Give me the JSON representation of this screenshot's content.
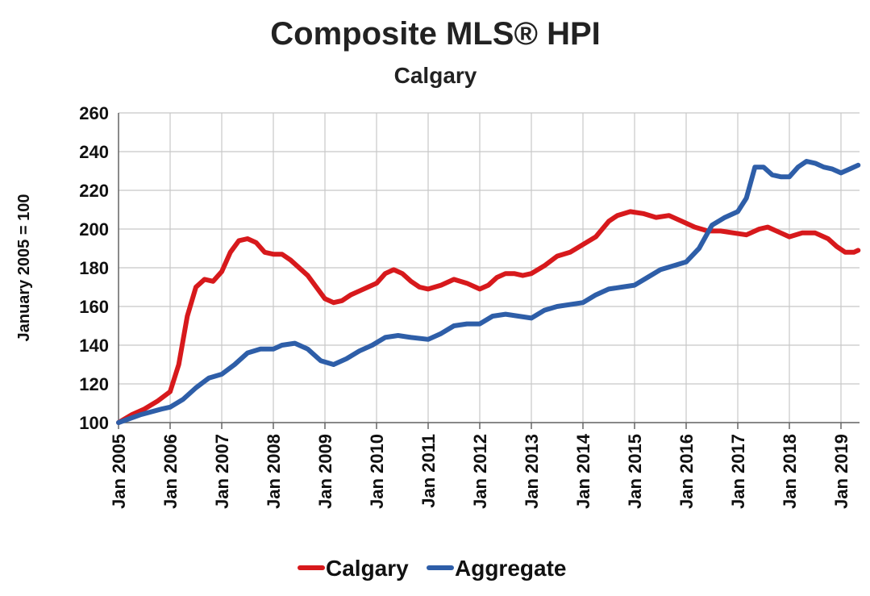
{
  "chart_data": {
    "type": "line",
    "title": "Composite MLS® HPI",
    "subtitle": "Calgary",
    "xlabel": "",
    "ylabel": "January 2005 = 100",
    "ylim": [
      100,
      260
    ],
    "yticks": [
      100,
      120,
      140,
      160,
      180,
      200,
      220,
      240,
      260
    ],
    "xlim": [
      "2005-01",
      "2019-05"
    ],
    "xtick_labels": [
      "Jan 2005",
      "Jan 2006",
      "Jan 2007",
      "Jan 2008",
      "Jan 2009",
      "Jan 2010",
      "Jan 2011",
      "Jan 2012",
      "Jan 2013",
      "Jan 2014",
      "Jan 2015",
      "Jan 2016",
      "Jan 2017",
      "Jan 2018",
      "Jan 2019"
    ],
    "grid": true,
    "legend_position": "bottom",
    "series": [
      {
        "name": "Calgary",
        "color": "#d7191c",
        "points": [
          [
            "2005-01",
            100
          ],
          [
            "2005-04",
            104
          ],
          [
            "2005-07",
            107
          ],
          [
            "2005-10",
            111
          ],
          [
            "2006-01",
            116
          ],
          [
            "2006-03",
            130
          ],
          [
            "2006-05",
            155
          ],
          [
            "2006-07",
            170
          ],
          [
            "2006-09",
            174
          ],
          [
            "2006-11",
            173
          ],
          [
            "2007-01",
            178
          ],
          [
            "2007-03",
            188
          ],
          [
            "2007-05",
            194
          ],
          [
            "2007-07",
            195
          ],
          [
            "2007-09",
            193
          ],
          [
            "2007-11",
            188
          ],
          [
            "2008-01",
            187
          ],
          [
            "2008-03",
            187
          ],
          [
            "2008-05",
            184
          ],
          [
            "2008-07",
            180
          ],
          [
            "2008-09",
            176
          ],
          [
            "2008-11",
            170
          ],
          [
            "2009-01",
            164
          ],
          [
            "2009-03",
            162
          ],
          [
            "2009-05",
            163
          ],
          [
            "2009-07",
            166
          ],
          [
            "2009-09",
            168
          ],
          [
            "2009-11",
            170
          ],
          [
            "2010-01",
            172
          ],
          [
            "2010-03",
            177
          ],
          [
            "2010-05",
            179
          ],
          [
            "2010-07",
            177
          ],
          [
            "2010-09",
            173
          ],
          [
            "2010-11",
            170
          ],
          [
            "2011-01",
            169
          ],
          [
            "2011-04",
            171
          ],
          [
            "2011-07",
            174
          ],
          [
            "2011-10",
            172
          ],
          [
            "2012-01",
            169
          ],
          [
            "2012-03",
            171
          ],
          [
            "2012-05",
            175
          ],
          [
            "2012-07",
            177
          ],
          [
            "2012-09",
            177
          ],
          [
            "2012-11",
            176
          ],
          [
            "2013-01",
            177
          ],
          [
            "2013-04",
            181
          ],
          [
            "2013-07",
            186
          ],
          [
            "2013-10",
            188
          ],
          [
            "2014-01",
            192
          ],
          [
            "2014-04",
            196
          ],
          [
            "2014-07",
            204
          ],
          [
            "2014-09",
            207
          ],
          [
            "2014-12",
            209
          ],
          [
            "2015-03",
            208
          ],
          [
            "2015-06",
            206
          ],
          [
            "2015-09",
            207
          ],
          [
            "2015-12",
            204
          ],
          [
            "2016-03",
            201
          ],
          [
            "2016-06",
            199
          ],
          [
            "2016-09",
            199
          ],
          [
            "2016-12",
            198
          ],
          [
            "2017-03",
            197
          ],
          [
            "2017-06",
            200
          ],
          [
            "2017-08",
            201
          ],
          [
            "2017-11",
            198
          ],
          [
            "2018-01",
            196
          ],
          [
            "2018-04",
            198
          ],
          [
            "2018-07",
            198
          ],
          [
            "2018-10",
            195
          ],
          [
            "2018-12",
            191
          ],
          [
            "2019-02",
            188
          ],
          [
            "2019-04",
            188
          ],
          [
            "2019-05",
            189
          ]
        ]
      },
      {
        "name": "Aggregate",
        "color": "#2e5ea8",
        "points": [
          [
            "2005-01",
            100
          ],
          [
            "2005-06",
            104
          ],
          [
            "2005-11",
            107
          ],
          [
            "2006-01",
            108
          ],
          [
            "2006-04",
            112
          ],
          [
            "2006-07",
            118
          ],
          [
            "2006-10",
            123
          ],
          [
            "2007-01",
            125
          ],
          [
            "2007-04",
            130
          ],
          [
            "2007-07",
            136
          ],
          [
            "2007-10",
            138
          ],
          [
            "2008-01",
            138
          ],
          [
            "2008-03",
            140
          ],
          [
            "2008-06",
            141
          ],
          [
            "2008-09",
            138
          ],
          [
            "2008-12",
            132
          ],
          [
            "2009-03",
            130
          ],
          [
            "2009-06",
            133
          ],
          [
            "2009-09",
            137
          ],
          [
            "2009-12",
            140
          ],
          [
            "2010-03",
            144
          ],
          [
            "2010-06",
            145
          ],
          [
            "2010-09",
            144
          ],
          [
            "2011-01",
            143
          ],
          [
            "2011-04",
            146
          ],
          [
            "2011-07",
            150
          ],
          [
            "2011-10",
            151
          ],
          [
            "2012-01",
            151
          ],
          [
            "2012-04",
            155
          ],
          [
            "2012-07",
            156
          ],
          [
            "2012-10",
            155
          ],
          [
            "2013-01",
            154
          ],
          [
            "2013-04",
            158
          ],
          [
            "2013-07",
            160
          ],
          [
            "2013-10",
            161
          ],
          [
            "2014-01",
            162
          ],
          [
            "2014-04",
            166
          ],
          [
            "2014-07",
            169
          ],
          [
            "2014-10",
            170
          ],
          [
            "2015-01",
            171
          ],
          [
            "2015-04",
            175
          ],
          [
            "2015-07",
            179
          ],
          [
            "2015-10",
            181
          ],
          [
            "2016-01",
            183
          ],
          [
            "2016-04",
            190
          ],
          [
            "2016-07",
            202
          ],
          [
            "2016-10",
            206
          ],
          [
            "2017-01",
            209
          ],
          [
            "2017-03",
            216
          ],
          [
            "2017-05",
            232
          ],
          [
            "2017-07",
            232
          ],
          [
            "2017-09",
            228
          ],
          [
            "2017-11",
            227
          ],
          [
            "2018-01",
            227
          ],
          [
            "2018-03",
            232
          ],
          [
            "2018-05",
            235
          ],
          [
            "2018-07",
            234
          ],
          [
            "2018-09",
            232
          ],
          [
            "2018-11",
            231
          ],
          [
            "2019-01",
            229
          ],
          [
            "2019-03",
            231
          ],
          [
            "2019-05",
            233
          ]
        ]
      }
    ]
  }
}
